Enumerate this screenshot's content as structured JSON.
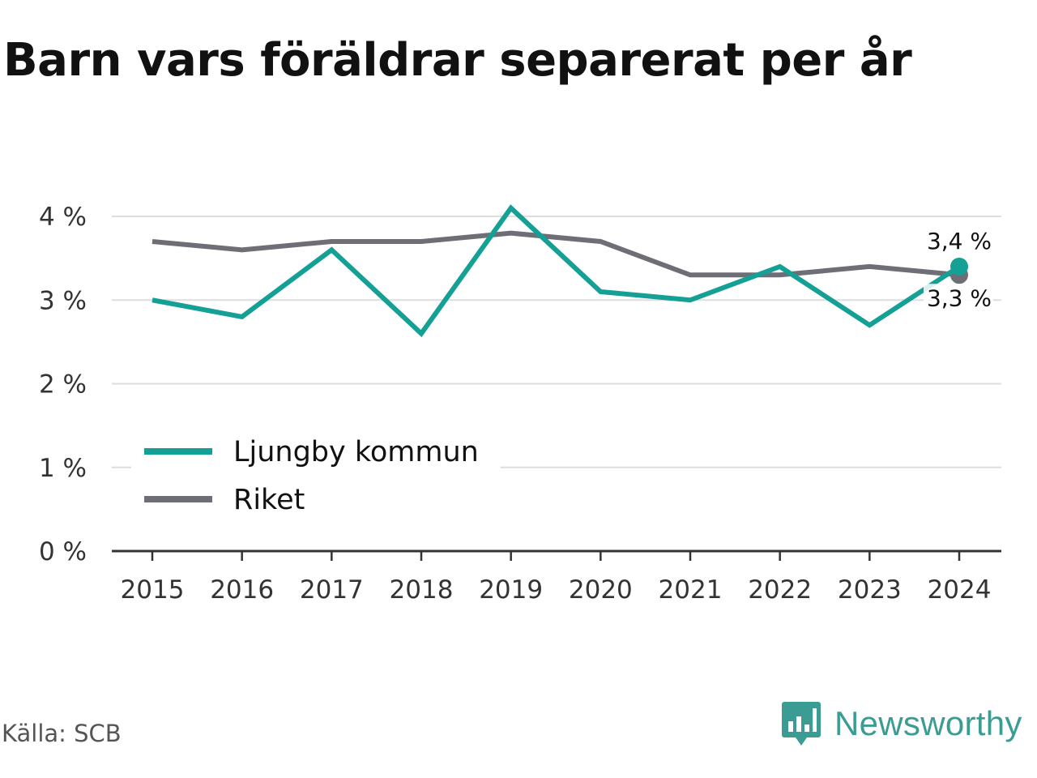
{
  "title": "Barn vars föräldrar separerat per år",
  "source": "Källa: SCB",
  "brand": {
    "name": "Newsworthy",
    "logo_icon": "newsworthy-bar-chart-icon",
    "color": "#3b9c93"
  },
  "chart_data": {
    "type": "line",
    "x": [
      "2015",
      "2016",
      "2017",
      "2018",
      "2019",
      "2020",
      "2021",
      "2022",
      "2023",
      "2024"
    ],
    "ylim": [
      0,
      4.3
    ],
    "yticks": [
      {
        "value": 0,
        "label": "0 %"
      },
      {
        "value": 1,
        "label": "1 %"
      },
      {
        "value": 2,
        "label": "2 %"
      },
      {
        "value": 3,
        "label": "3 %"
      },
      {
        "value": 4,
        "label": "4 %"
      }
    ],
    "grid": true,
    "legend_position": "bottom-left",
    "series": [
      {
        "name": "Ljungby kommun",
        "color": "#14a095",
        "values": [
          3.0,
          2.8,
          3.6,
          2.6,
          4.1,
          3.1,
          3.0,
          3.4,
          2.7,
          3.4
        ],
        "end_label": "3,4 %"
      },
      {
        "name": "Riket",
        "color": "#6e6e76",
        "values": [
          3.7,
          3.6,
          3.7,
          3.7,
          3.8,
          3.7,
          3.3,
          3.3,
          3.4,
          3.3
        ],
        "end_label": "3,3 %"
      }
    ]
  }
}
